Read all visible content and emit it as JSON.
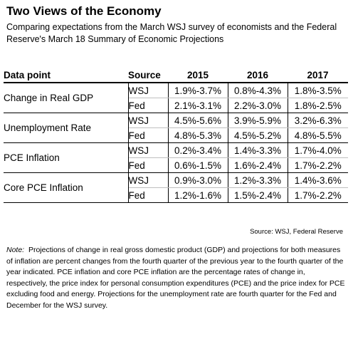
{
  "header": {
    "title": "Two Views of the Economy",
    "subtitle": "Comparing expectations from the March WSJ survey of economists and the Federal Reserve's March 18 Summary of Economic Projections"
  },
  "table": {
    "columns": [
      "Data point",
      "Source",
      "2015",
      "2016",
      "2017"
    ],
    "rows": [
      {
        "label": "Change in Real GDP",
        "entries": [
          {
            "source": "WSJ",
            "values": [
              "1.9%-3.7%",
              "0.8%-4.3%",
              "1.8%-3.5%"
            ]
          },
          {
            "source": "Fed",
            "values": [
              "2.1%-3.1%",
              "2.2%-3.0%",
              "1.8%-2.5%"
            ]
          }
        ]
      },
      {
        "label": "Unemployment Rate",
        "entries": [
          {
            "source": "WSJ",
            "values": [
              "4.5%-5.6%",
              "3.9%-5.9%",
              "3.2%-6.3%"
            ]
          },
          {
            "source": "Fed",
            "values": [
              "4.8%-5.3%",
              "4.5%-5.2%",
              "4.8%-5.5%"
            ]
          }
        ]
      },
      {
        "label": "PCE Inflation",
        "entries": [
          {
            "source": "WSJ",
            "values": [
              "0.2%-3.4%",
              "1.4%-3.3%",
              "1.7%-4.0%"
            ]
          },
          {
            "source": "Fed",
            "values": [
              "0.6%-1.5%",
              "1.6%-2.4%",
              "1.7%-2.2%"
            ]
          }
        ]
      },
      {
        "label": "Core PCE Inflation",
        "entries": [
          {
            "source": "WSJ",
            "values": [
              "0.9%-3.0%",
              "1.2%-3.3%",
              "1.4%-3.6%"
            ]
          },
          {
            "source": "Fed",
            "values": [
              "1.2%-1.6%",
              "1.5%-2.4%",
              "1.7%-2.2%"
            ]
          }
        ]
      }
    ]
  },
  "source": "Source: WSJ, Federal Reserve",
  "note": {
    "label": "Note:",
    "text": "Projections of change in real gross domestic product (GDP) and projections for both measures of inflation are percent changes from the fourth quarter of the previous year to the fourth quarter of the year indicated. PCE inflation and core PCE inflation are the percentage rates of change in, respectively, the price index for personal consumption expenditures (PCE) and the price index for PCE excluding food and energy. Projections for the unemployment rate are fourth quarter for the Fed and December for the WSJ survey."
  }
}
